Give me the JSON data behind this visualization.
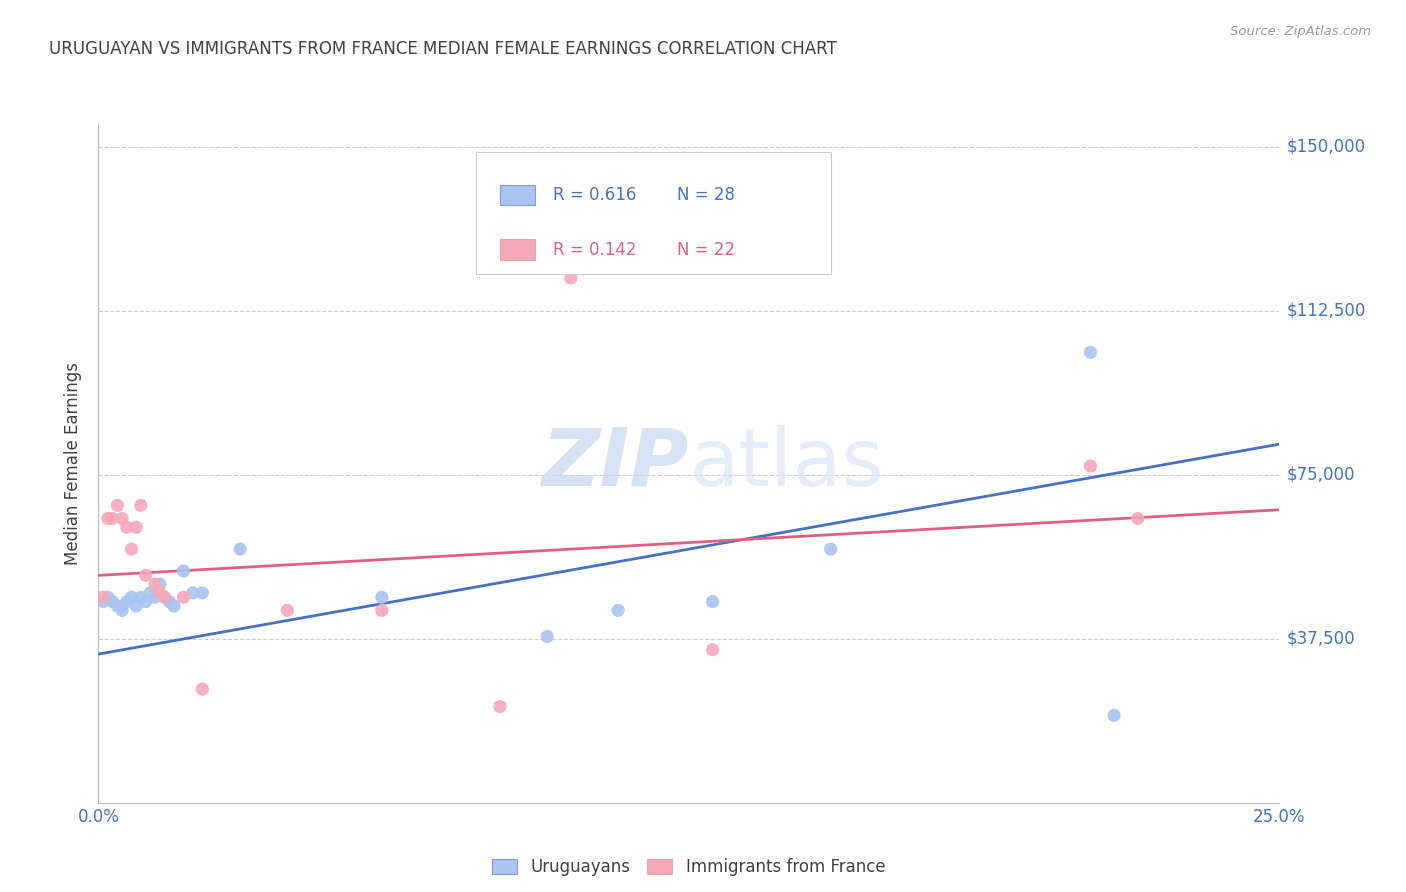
{
  "title": "URUGUAYAN VS IMMIGRANTS FROM FRANCE MEDIAN FEMALE EARNINGS CORRELATION CHART",
  "source": "Source: ZipAtlas.com",
  "ylabel_label": "Median Female Earnings",
  "x_min": 0.0,
  "x_max": 0.25,
  "y_min": 0,
  "y_max": 150000,
  "y_ticks": [
    37500,
    75000,
    112500,
    150000
  ],
  "y_tick_labels": [
    "$37,500",
    "$75,000",
    "$112,500",
    "$150,000"
  ],
  "x_ticks": [
    0.0,
    0.05,
    0.1,
    0.15,
    0.2,
    0.25
  ],
  "x_tick_labels": [
    "0.0%",
    "",
    "",
    "",
    "",
    "25.0%"
  ],
  "blue_R": "0.616",
  "blue_N": "28",
  "pink_R": "0.142",
  "pink_N": "22",
  "blue_color": "#A8C4F0",
  "pink_color": "#F5A8B8",
  "blue_line_color": "#4472C4",
  "pink_line_color": "#E06080",
  "background_color": "#FFFFFF",
  "grid_color": "#CCCCCC",
  "title_color": "#404040",
  "axis_label_color": "#404040",
  "tick_label_color": "#4472C4",
  "watermark_color": "#D8E8F8",
  "blue_scatter_x": [
    0.001,
    0.002,
    0.003,
    0.004,
    0.005,
    0.005,
    0.006,
    0.007,
    0.008,
    0.009,
    0.01,
    0.011,
    0.012,
    0.013,
    0.014,
    0.015,
    0.016,
    0.018,
    0.02,
    0.022,
    0.03,
    0.06,
    0.095,
    0.11,
    0.13,
    0.155,
    0.21,
    0.215
  ],
  "blue_scatter_y": [
    46000,
    47000,
    46000,
    45000,
    45000,
    44000,
    46000,
    47000,
    45000,
    47000,
    46000,
    48000,
    47000,
    50000,
    47000,
    46000,
    45000,
    53000,
    48000,
    48000,
    58000,
    47000,
    38000,
    44000,
    46000,
    58000,
    103000,
    20000
  ],
  "pink_scatter_x": [
    0.001,
    0.002,
    0.003,
    0.004,
    0.005,
    0.006,
    0.007,
    0.008,
    0.009,
    0.01,
    0.012,
    0.013,
    0.014,
    0.018,
    0.022,
    0.04,
    0.06,
    0.085,
    0.1,
    0.13,
    0.21,
    0.22
  ],
  "pink_scatter_y": [
    47000,
    65000,
    65000,
    68000,
    65000,
    63000,
    58000,
    63000,
    68000,
    52000,
    50000,
    48000,
    47000,
    47000,
    26000,
    44000,
    44000,
    22000,
    120000,
    35000,
    77000,
    65000
  ],
  "blue_trend_x": [
    0.0,
    0.25
  ],
  "blue_trend_y": [
    34000,
    82000
  ],
  "pink_trend_x": [
    0.0,
    0.25
  ],
  "pink_trend_y": [
    52000,
    67000
  ]
}
